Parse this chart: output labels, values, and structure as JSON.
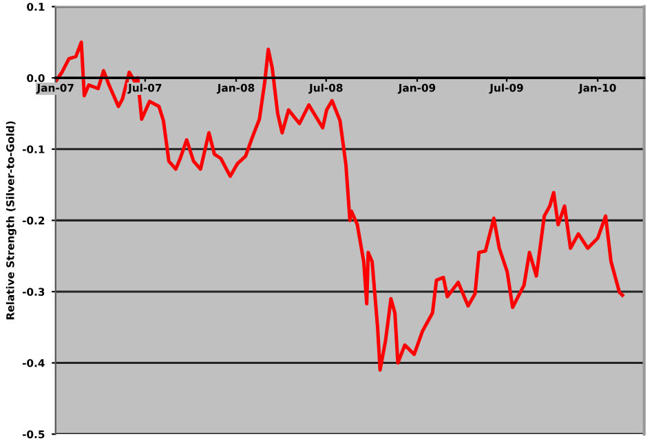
{
  "chart_data": {
    "type": "line",
    "ylabel": "Relative Strength (Silver-to-Gold)",
    "x": [
      "2007-01-01",
      "2007-01-14",
      "2007-01-28",
      "2007-02-11",
      "2007-02-22",
      "2007-02-28",
      "2007-03-09",
      "2007-03-28",
      "2007-04-08",
      "2007-04-19",
      "2007-05-08",
      "2007-05-16",
      "2007-05-30",
      "2007-06-10",
      "2007-06-16",
      "2007-06-24",
      "2007-07-10",
      "2007-07-29",
      "2007-08-07",
      "2007-08-18",
      "2007-09-01",
      "2007-09-10",
      "2007-09-23",
      "2007-10-07",
      "2007-10-21",
      "2007-11-07",
      "2007-11-18",
      "2007-12-01",
      "2007-12-20",
      "2008-01-04",
      "2008-01-20",
      "2008-02-03",
      "2008-02-17",
      "2008-02-28",
      "2008-03-06",
      "2008-03-14",
      "2008-03-25",
      "2008-04-03",
      "2008-04-16",
      "2008-05-08",
      "2008-05-27",
      "2008-06-24",
      "2008-07-02",
      "2008-07-13",
      "2008-07-29",
      "2008-08-10",
      "2008-08-18",
      "2008-08-21",
      "2008-09-02",
      "2008-09-15",
      "2008-09-21",
      "2008-09-24",
      "2008-10-02",
      "2008-10-13",
      "2008-10-18",
      "2008-10-29",
      "2008-11-09",
      "2008-11-17",
      "2008-11-23",
      "2008-12-07",
      "2008-12-26",
      "2009-01-12",
      "2009-02-01",
      "2009-02-09",
      "2009-02-23",
      "2009-03-03",
      "2009-03-25",
      "2009-04-14",
      "2009-04-28",
      "2009-05-06",
      "2009-05-19",
      "2009-06-05",
      "2009-06-16",
      "2009-07-02",
      "2009-07-13",
      "2009-08-05",
      "2009-08-16",
      "2009-08-30",
      "2009-09-15",
      "2009-09-26",
      "2009-10-04",
      "2009-10-13",
      "2009-10-26",
      "2009-11-07",
      "2009-11-23",
      "2009-12-12",
      "2010-01-01",
      "2010-01-17",
      "2010-01-28",
      "2010-02-14",
      "2010-02-20"
    ],
    "series": [
      {
        "color": "#ff0000",
        "values": [
          -0.005,
          0.008,
          0.027,
          0.03,
          0.05,
          -0.025,
          -0.01,
          -0.015,
          0.01,
          -0.01,
          -0.04,
          -0.03,
          0.008,
          -0.005,
          0.0,
          -0.058,
          -0.033,
          -0.04,
          -0.06,
          -0.117,
          -0.128,
          -0.113,
          -0.087,
          -0.117,
          -0.128,
          -0.077,
          -0.107,
          -0.113,
          -0.138,
          -0.12,
          -0.11,
          -0.083,
          -0.058,
          -0.005,
          0.04,
          0.014,
          -0.05,
          -0.077,
          -0.045,
          -0.064,
          -0.038,
          -0.07,
          -0.045,
          -0.032,
          -0.06,
          -0.122,
          -0.2,
          -0.187,
          -0.206,
          -0.258,
          -0.317,
          -0.245,
          -0.258,
          -0.35,
          -0.41,
          -0.369,
          -0.31,
          -0.33,
          -0.4,
          -0.375,
          -0.388,
          -0.355,
          -0.33,
          -0.284,
          -0.28,
          -0.307,
          -0.287,
          -0.32,
          -0.303,
          -0.245,
          -0.243,
          -0.197,
          -0.239,
          -0.272,
          -0.322,
          -0.291,
          -0.245,
          -0.278,
          -0.194,
          -0.18,
          -0.161,
          -0.206,
          -0.18,
          -0.239,
          -0.219,
          -0.239,
          -0.225,
          -0.194,
          -0.258,
          -0.301,
          -0.305
        ]
      }
    ],
    "xlim": [
      "2007-01-01",
      "2010-04-05"
    ],
    "xticks": [
      {
        "value": "2007-01-01",
        "label": "Jan-07"
      },
      {
        "value": "2007-07-01",
        "label": "Jul-07"
      },
      {
        "value": "2008-01-01",
        "label": "Jan-08"
      },
      {
        "value": "2008-07-01",
        "label": "Jul-08"
      },
      {
        "value": "2009-01-01",
        "label": "Jan-09"
      },
      {
        "value": "2009-07-01",
        "label": "Jul-09"
      },
      {
        "value": "2010-01-01",
        "label": "Jan-10"
      }
    ],
    "ylim": [
      -0.5,
      0.1
    ],
    "yticks": [
      {
        "value": 0.1,
        "label": "0.1"
      },
      {
        "value": 0.0,
        "label": "0.0"
      },
      {
        "value": -0.1,
        "label": "-0.1"
      },
      {
        "value": -0.2,
        "label": "-0.2"
      },
      {
        "value": -0.3,
        "label": "-0.3"
      },
      {
        "value": -0.4,
        "label": "-0.4"
      },
      {
        "value": -0.5,
        "label": "-0.5"
      }
    ],
    "grid": "y",
    "marker": "none",
    "line_style": "solid"
  }
}
